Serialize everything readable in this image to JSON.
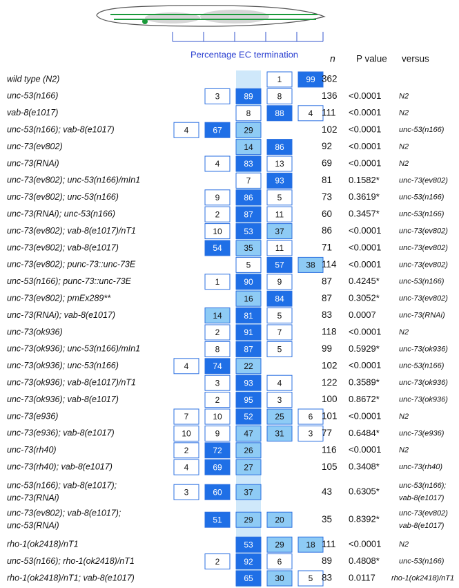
{
  "header": {
    "axis_label": "Percentage EC termination",
    "n": "n",
    "p": "P value",
    "versus": "versus"
  },
  "rows": [
    {
      "genotype": [
        "wild type (N2)"
      ],
      "cells": [
        null,
        null,
        null,
        1,
        99
      ],
      "n": 362
    },
    {
      "genotype": [
        "unc-53(n166)"
      ],
      "cells": [
        null,
        3,
        89,
        8,
        null
      ],
      "n": 136,
      "p": "<0.0001",
      "versus": [
        "N2"
      ]
    },
    {
      "genotype": [
        "vab-8(e1017)"
      ],
      "cells": [
        null,
        null,
        8,
        88,
        4
      ],
      "n": 111,
      "p": "<0.0001",
      "versus": [
        "N2"
      ]
    },
    {
      "genotype": [
        "unc-53(n166); vab-8(e1017)"
      ],
      "cells": [
        4,
        67,
        29,
        null,
        null
      ],
      "n": 102,
      "p": "<0.0001",
      "versus": [
        "unc-53(n166)"
      ]
    },
    {
      "genotype": [
        "unc-73(ev802)"
      ],
      "cells": [
        null,
        null,
        14,
        86,
        null
      ],
      "n": 92,
      "p": "<0.0001",
      "versus": [
        "N2"
      ]
    },
    {
      "genotype": [
        "unc-73(RNAi)"
      ],
      "cells": [
        null,
        4,
        83,
        13,
        null
      ],
      "n": 69,
      "p": "<0.0001",
      "versus": [
        "N2"
      ]
    },
    {
      "genotype": [
        "unc-73(ev802); unc-53(n166)/mIn1"
      ],
      "cells": [
        null,
        null,
        7,
        93,
        null
      ],
      "n": 81,
      "p": "0.1582*",
      "versus": [
        "unc-73(ev802)"
      ]
    },
    {
      "genotype": [
        "unc-73(ev802); unc-53(n166)"
      ],
      "cells": [
        null,
        9,
        86,
        5,
        null
      ],
      "n": 73,
      "p": "0.3619*",
      "versus": [
        "unc-53(n166)"
      ]
    },
    {
      "genotype": [
        "unc-73(RNAi); unc-53(n166)"
      ],
      "cells": [
        null,
        2,
        87,
        11,
        null
      ],
      "n": 60,
      "p": "0.3457*",
      "versus": [
        "unc-53(n166)"
      ]
    },
    {
      "genotype": [
        "unc-73(ev802); vab-8(e1017)/nT1"
      ],
      "cells": [
        null,
        10,
        53,
        37,
        null
      ],
      "n": 86,
      "p": "<0.0001",
      "versus": [
        "unc-73(ev802)"
      ]
    },
    {
      "genotype": [
        "unc-73(ev802); vab-8(e1017)"
      ],
      "cells": [
        null,
        54,
        35,
        11,
        null
      ],
      "n": 71,
      "p": "<0.0001",
      "versus": [
        "unc-73(ev802)"
      ]
    },
    {
      "genotype": [
        "unc-73(ev802); punc-73::unc-73E"
      ],
      "cells": [
        null,
        null,
        5,
        57,
        38
      ],
      "n": 114,
      "p": "<0.0001",
      "versus": [
        "unc-73(ev802)"
      ]
    },
    {
      "genotype": [
        "unc-53(n166); punc-73::unc-73E"
      ],
      "cells": [
        null,
        1,
        90,
        9,
        null
      ],
      "n": 87,
      "p": "0.4245*",
      "versus": [
        "unc-53(n166)"
      ]
    },
    {
      "genotype": [
        "unc-73(ev802); pmEx289**"
      ],
      "cells": [
        null,
        null,
        16,
        84,
        null
      ],
      "n": 87,
      "p": "0.3052*",
      "versus": [
        "unc-73(ev802)"
      ]
    },
    {
      "genotype": [
        "unc-73(RNAi); vab-8(e1017)"
      ],
      "cells": [
        null,
        14,
        81,
        5,
        null
      ],
      "n": 83,
      "p": "0.0007",
      "versus": [
        "unc-73(RNAi)"
      ]
    },
    {
      "genotype": [
        "unc-73(ok936)"
      ],
      "cells": [
        null,
        2,
        91,
        7,
        null
      ],
      "n": 118,
      "p": "<0.0001",
      "versus": [
        "N2"
      ]
    },
    {
      "genotype": [
        "unc-73(ok936); unc-53(n166)/mIn1"
      ],
      "cells": [
        null,
        8,
        87,
        5,
        null
      ],
      "n": 99,
      "p": "0.5929*",
      "versus": [
        "unc-73(ok936)"
      ]
    },
    {
      "genotype": [
        "unc-73(ok936); unc-53(n166)"
      ],
      "cells": [
        4,
        74,
        22,
        null,
        null
      ],
      "n": 102,
      "p": "<0.0001",
      "versus": [
        "unc-53(n166)"
      ]
    },
    {
      "genotype": [
        "unc-73(ok936); vab-8(e1017)/nT1"
      ],
      "cells": [
        null,
        3,
        93,
        4,
        null
      ],
      "n": 122,
      "p": "0.3589*",
      "versus": [
        "unc-73(ok936)"
      ]
    },
    {
      "genotype": [
        "unc-73(ok936); vab-8(e1017)"
      ],
      "cells": [
        null,
        2,
        95,
        3,
        null
      ],
      "n": 100,
      "p": "0.8672*",
      "versus": [
        "unc-73(ok936)"
      ]
    },
    {
      "genotype": [
        "unc-73(e936)"
      ],
      "cells": [
        7,
        10,
        52,
        25,
        6
      ],
      "n": 101,
      "p": "<0.0001",
      "versus": [
        "N2"
      ]
    },
    {
      "genotype": [
        "unc-73(e936); vab-8(e1017)"
      ],
      "cells": [
        10,
        9,
        47,
        31,
        3
      ],
      "n": 77,
      "p": "0.6484*",
      "versus": [
        "unc-73(e936)"
      ]
    },
    {
      "genotype": [
        "unc-73(rh40)"
      ],
      "cells": [
        2,
        72,
        26,
        null,
        null
      ],
      "n": 116,
      "p": "<0.0001",
      "versus": [
        "N2"
      ]
    },
    {
      "genotype": [
        "unc-73(rh40); vab-8(e1017)"
      ],
      "cells": [
        4,
        69,
        27,
        null,
        null
      ],
      "n": 105,
      "p": "0.3408*",
      "versus": [
        "unc-73(rh40)"
      ]
    },
    {
      "genotype": [
        "unc-53(n166); vab-8(e1017);",
        "unc-73(RNAi)"
      ],
      "cells": [
        3,
        60,
        37,
        null,
        null
      ],
      "n": 43,
      "p": "0.6305*",
      "versus": [
        "unc-53(n166);",
        "vab-8(e1017)"
      ]
    },
    {
      "genotype": [
        "unc-73(ev802); vab-8(e1017);",
        "unc-53(RNAi)"
      ],
      "cells": [
        null,
        51,
        29,
        20,
        null
      ],
      "n": 35,
      "p": "0.8392*",
      "versus": [
        "unc-73(ev802)",
        "vab-8(e1017)"
      ]
    },
    {
      "genotype": [
        "rho-1(ok2418)/nT1"
      ],
      "cells": [
        null,
        null,
        53,
        29,
        18
      ],
      "n": 111,
      "p": "<0.0001",
      "versus": [
        "N2"
      ]
    },
    {
      "genotype": [
        "unc-53(n166);  rho-1(ok2418)/nT1"
      ],
      "cells": [
        null,
        2,
        92,
        6,
        null
      ],
      "n": 89,
      "p": "0.4808*",
      "versus": [
        "unc-53(n166)"
      ]
    },
    {
      "genotype": [
        "rho-1(ok2418)/nT1; vab-8(e1017)"
      ],
      "cells": [
        null,
        null,
        65,
        30,
        5
      ],
      "n": 83,
      "p": "0.0117",
      "versus": [
        "rho-1(ok2418)/nT1"
      ]
    }
  ]
}
